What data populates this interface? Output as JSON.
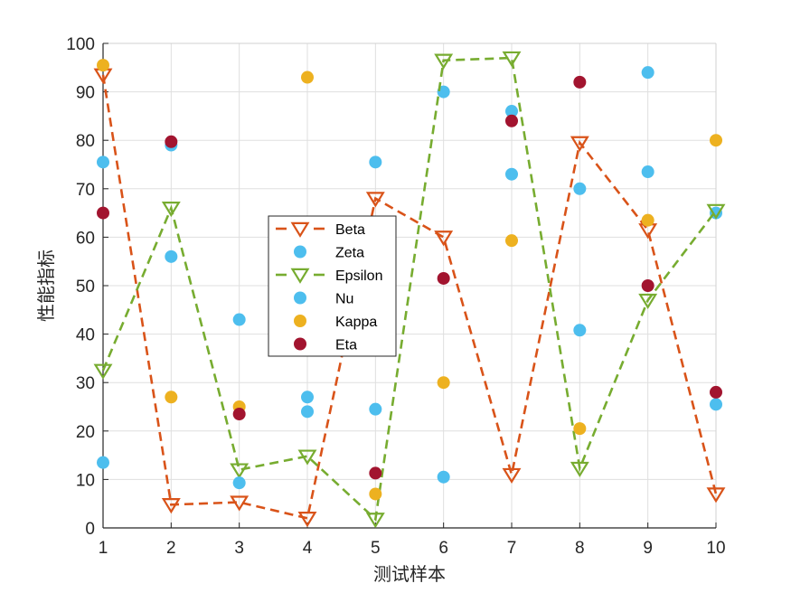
{
  "chart_data": {
    "type": "line",
    "title": "",
    "xlabel": "测试样本",
    "ylabel": "性能指标",
    "x": [
      1,
      2,
      3,
      4,
      5,
      6,
      7,
      8,
      9,
      10
    ],
    "xlim": [
      1,
      10
    ],
    "ylim": [
      0,
      100
    ],
    "xticks": [
      1,
      2,
      3,
      4,
      5,
      6,
      7,
      8,
      9,
      10
    ],
    "yticks": [
      0,
      10,
      20,
      30,
      40,
      50,
      60,
      70,
      80,
      90,
      100
    ],
    "grid": true,
    "legend_position": "center-left (inside)",
    "series": [
      {
        "name": "Beta",
        "style": "dashed-line-triangle-down",
        "color": "#D95319",
        "values": [
          93.5,
          4.8,
          5.3,
          2.0,
          68.0,
          60.0,
          11.0,
          79.5,
          61.5,
          7.0
        ]
      },
      {
        "name": "Zeta",
        "style": "scatter-dot",
        "color": "#4DBEEE",
        "values": [
          75.5,
          79.0,
          43.0,
          27.0,
          75.5,
          90.0,
          86.0,
          70.0,
          94.0,
          65.0
        ]
      },
      {
        "name": "Epsilon",
        "style": "dashed-line-triangle-down",
        "color": "#77AC30",
        "values": [
          32.5,
          66.0,
          12.0,
          14.8,
          1.8,
          96.5,
          97.0,
          12.3,
          47.0,
          65.5
        ]
      },
      {
        "name": "Nu",
        "style": "scatter-dot",
        "color": "#4DBEEE",
        "values": [
          13.5,
          56.0,
          9.3,
          24.0,
          24.5,
          10.5,
          73.0,
          40.8,
          73.5,
          25.5
        ]
      },
      {
        "name": "Kappa",
        "style": "scatter-dot",
        "color": "#EDB120",
        "values": [
          95.5,
          27.0,
          25.0,
          93.0,
          7.0,
          30.0,
          59.3,
          20.5,
          63.5,
          80.0
        ]
      },
      {
        "name": "Eta",
        "style": "scatter-dot",
        "color": "#A2142F",
        "values": [
          65.0,
          79.7,
          23.5,
          45.0,
          11.3,
          51.5,
          84.0,
          92.0,
          50.0,
          28.0
        ]
      }
    ]
  }
}
